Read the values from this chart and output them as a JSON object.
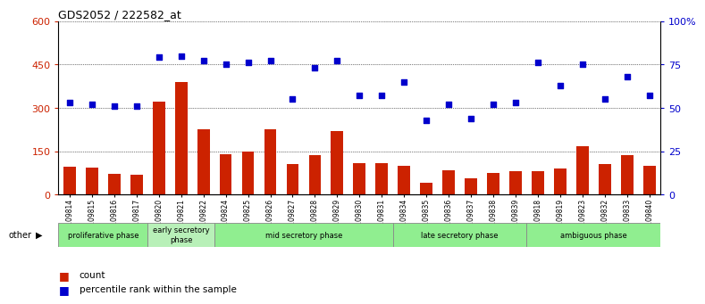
{
  "title": "GDS2052 / 222582_at",
  "samples": [
    "GSM109814",
    "GSM109815",
    "GSM109816",
    "GSM109817",
    "GSM109820",
    "GSM109821",
    "GSM109822",
    "GSM109824",
    "GSM109825",
    "GSM109826",
    "GSM109827",
    "GSM109828",
    "GSM109829",
    "GSM109830",
    "GSM109831",
    "GSM109834",
    "GSM109835",
    "GSM109836",
    "GSM109837",
    "GSM109838",
    "GSM109839",
    "GSM109818",
    "GSM109819",
    "GSM109823",
    "GSM109832",
    "GSM109833",
    "GSM109840"
  ],
  "counts": [
    95,
    92,
    72,
    68,
    320,
    390,
    225,
    140,
    150,
    225,
    105,
    138,
    220,
    108,
    108,
    100,
    42,
    85,
    55,
    75,
    80,
    80,
    90,
    168,
    105,
    138,
    100
  ],
  "percentiles": [
    53,
    52,
    51,
    51,
    79,
    80,
    77,
    75,
    76,
    77,
    55,
    73,
    77,
    57,
    57,
    65,
    43,
    52,
    44,
    52,
    53,
    76,
    63,
    75,
    55,
    68,
    57
  ],
  "phases": [
    {
      "name": "proliferative phase",
      "start": 0,
      "end": 4,
      "color": "#90EE90"
    },
    {
      "name": "early secretory\nphase",
      "start": 4,
      "end": 7,
      "color": "#b8f0b8"
    },
    {
      "name": "mid secretory phase",
      "start": 7,
      "end": 15,
      "color": "#90EE90"
    },
    {
      "name": "late secretory phase",
      "start": 15,
      "end": 21,
      "color": "#90EE90"
    },
    {
      "name": "ambiguous phase",
      "start": 21,
      "end": 27,
      "color": "#90EE90"
    }
  ],
  "ylim_left": [
    0,
    600
  ],
  "ylim_right": [
    0,
    100
  ],
  "yticks_left": [
    0,
    150,
    300,
    450,
    600
  ],
  "yticks_right": [
    0,
    25,
    50,
    75,
    100
  ],
  "bar_color": "#cc2200",
  "dot_color": "#0000cc",
  "bg_color": "#ffffff"
}
